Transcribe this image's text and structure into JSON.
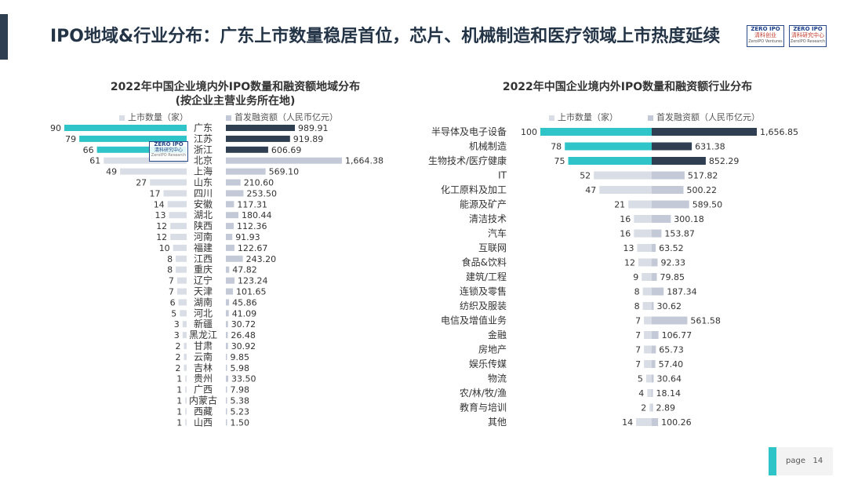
{
  "page": {
    "title": "IPO地域&行业分布：广东上市数量稳居首位，芯片、机械制造和医疗领域上市热度延续",
    "page_label": "page",
    "page_number": "14",
    "logo_left": {
      "text1": "ZERO IPO",
      "text2": "清科创业",
      "text3": "ZeroIPO Ventures"
    },
    "logo_right": {
      "text1": "ZERO IPO",
      "text2": "清科研究中心",
      "text3": "ZeroIPO Research"
    },
    "watermark": {
      "text1": "ZERO IPO",
      "text2": "清科研究中心",
      "text3": "ZeroIPO Research"
    }
  },
  "colors": {
    "count_top": "#2ec4c8",
    "count_rest": "#d9dde6",
    "amount_top": "#2f3e50",
    "amount_rest": "#c3c9d6"
  },
  "chart_data": [
    {
      "type": "bar",
      "title": "2022年中国企业境内外IPO数量和融资额地域分布",
      "subtitle": "(按企业主营业务所在地)",
      "legend": [
        "上市数量（家）",
        "首发融资额（人民币亿元）"
      ],
      "legend_position": "top",
      "categories": [
        "广东",
        "江苏",
        "浙江",
        "北京",
        "上海",
        "山东",
        "四川",
        "安徽",
        "湖北",
        "陕西",
        "河南",
        "福建",
        "江西",
        "重庆",
        "辽宁",
        "天津",
        "湖南",
        "河北",
        "新疆",
        "黑龙江",
        "甘肃",
        "云南",
        "吉林",
        "贵州",
        "广西",
        "内蒙古",
        "西藏",
        "山西"
      ],
      "series": [
        {
          "name": "上市数量（家）",
          "values": [
            90,
            79,
            66,
            61,
            49,
            27,
            17,
            14,
            13,
            12,
            12,
            10,
            8,
            8,
            7,
            7,
            6,
            5,
            3,
            3,
            2,
            2,
            2,
            1,
            1,
            1,
            1,
            1
          ]
        },
        {
          "name": "首发融资额（人民币亿元）",
          "values": [
            "989.91",
            "919.89",
            "606.69",
            "1,664.38",
            "569.10",
            "210.60",
            "253.50",
            "117.31",
            "180.44",
            "112.36",
            "91.93",
            "122.67",
            "243.20",
            "47.82",
            "123.24",
            "101.65",
            "45.86",
            "41.09",
            "30.72",
            "26.48",
            "30.92",
            "9.85",
            "5.98",
            "33.50",
            "7.98",
            "5.38",
            "5.23",
            "1.50"
          ]
        }
      ]
    },
    {
      "type": "bar",
      "title": "2022年中国企业境内外IPO数量和融资额行业分布",
      "legend": [
        "上市数量（家）",
        "首发融资额（人民币亿元）"
      ],
      "legend_position": "top",
      "categories": [
        "半导体及电子设备",
        "机械制造",
        "生物技术/医疗健康",
        "IT",
        "化工原料及加工",
        "能源及矿产",
        "清洁技术",
        "汽车",
        "互联网",
        "食品&饮料",
        "建筑/工程",
        "连锁及零售",
        "纺织及服装",
        "电信及增值业务",
        "金融",
        "房地产",
        "娱乐传媒",
        "物流",
        "农/林/牧/渔",
        "教育与培训",
        "其他"
      ],
      "series": [
        {
          "name": "上市数量（家）",
          "values": [
            100,
            78,
            75,
            52,
            47,
            21,
            16,
            16,
            13,
            12,
            9,
            8,
            8,
            7,
            7,
            7,
            7,
            5,
            4,
            2,
            14
          ]
        },
        {
          "name": "首发融资额（人民币亿元）",
          "values": [
            "1,656.85",
            "631.38",
            "852.29",
            "517.82",
            "500.22",
            "589.50",
            "300.18",
            "153.87",
            "63.52",
            "92.33",
            "79.85",
            "187.34",
            "30.62",
            "561.58",
            "106.77",
            "65.73",
            "57.40",
            "30.64",
            "18.14",
            "2.89",
            "100.26"
          ]
        }
      ]
    }
  ]
}
